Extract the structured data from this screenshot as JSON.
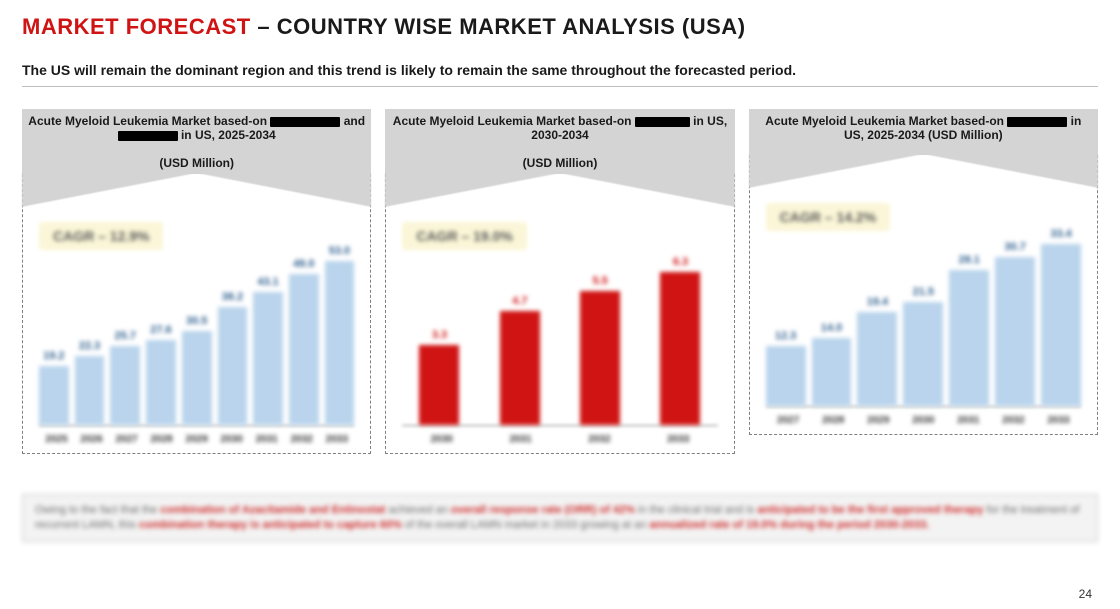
{
  "header": {
    "title_primary": "MARKET FORECAST",
    "separator": "  –  ",
    "title_secondary": "COUNTRY WISE MARKET ANALYSIS (USA)",
    "primary_color": "#d01414",
    "secondary_color": "#1a1a1a",
    "title_fontsize": 22
  },
  "subtitle": "The US will remain the dominant region and this trend is likely to remain the same throughout the forecasted period.",
  "charts": [
    {
      "id": "chart1",
      "header_parts": [
        "Acute Myeloid Leukemia Market based-on ",
        "████████",
        " and ",
        "████████",
        " in US, 2025-2034",
        "(USD Million)"
      ],
      "redact_widths": [
        70,
        60
      ],
      "cagr_label": "CAGR – 12.9%",
      "type": "bar",
      "bar_color": "#b9d4ec",
      "value_color": "#2e5f8f",
      "categories": [
        "2025",
        "2026",
        "2027",
        "2028",
        "2029",
        "2030",
        "2031",
        "2032",
        "2033"
      ],
      "values": [
        19.2,
        22.3,
        25.7,
        27.6,
        30.5,
        38.2,
        43.1,
        49.0,
        53.0
      ],
      "max_scale": 55
    },
    {
      "id": "chart2",
      "header_parts": [
        "Acute Myeloid Leukemia Market based-on ",
        "████████",
        " in US, 2030-2034",
        "(USD Million)"
      ],
      "redact_widths": [
        55
      ],
      "cagr_label": "CAGR – 19.0%",
      "type": "bar",
      "bar_color": "#d01414",
      "value_color": "#d01414",
      "categories": [
        "2030",
        "2031",
        "2032",
        "2033"
      ],
      "values": [
        3.3,
        4.7,
        5.5,
        6.3
      ],
      "max_scale": 7
    },
    {
      "id": "chart3",
      "header_parts": [
        "Acute Myeloid Leukemia Market based-on ",
        "████████",
        " in US, 2025-2034 (USD Million)"
      ],
      "redact_widths": [
        60
      ],
      "cagr_label": "CAGR – 14.2%",
      "type": "bar",
      "bar_color": "#b9d4ec",
      "value_color": "#2e5f8f",
      "categories": [
        "2027",
        "2028",
        "2029",
        "2030",
        "2031",
        "2032",
        "2033"
      ],
      "values": [
        12.3,
        14.0,
        19.4,
        21.5,
        28.1,
        30.7,
        33.4
      ],
      "max_scale": 35
    }
  ],
  "footnote": {
    "pre": "Owing to the fact that the ",
    "hl1": "combination of Azacitamide and Entinostat",
    "mid1": " achieved an ",
    "hl2": "overall response rate (ORR) of 42%",
    "mid2": " in the clinical trial and is ",
    "hl3": "anticipated to be the first approved therapy",
    "mid3": " for the treatment of recurrent LAMN, this ",
    "hl4": "combination therapy is anticipated to capture 60%",
    "mid4": " of the overall LAMN market in 2033 growing at an ",
    "hl5": "annualized rate of 19.0% during the period 2030-2033."
  },
  "page_number": "24",
  "style": {
    "header_bg": "#d4d4d4",
    "card_border": "#7f7f7f",
    "cagr_bg": "#fbf6d7",
    "footnote_bg": "#f3f3f3",
    "footnote_border": "#c9c9c9",
    "highlight_color": "#ce2a2a"
  }
}
